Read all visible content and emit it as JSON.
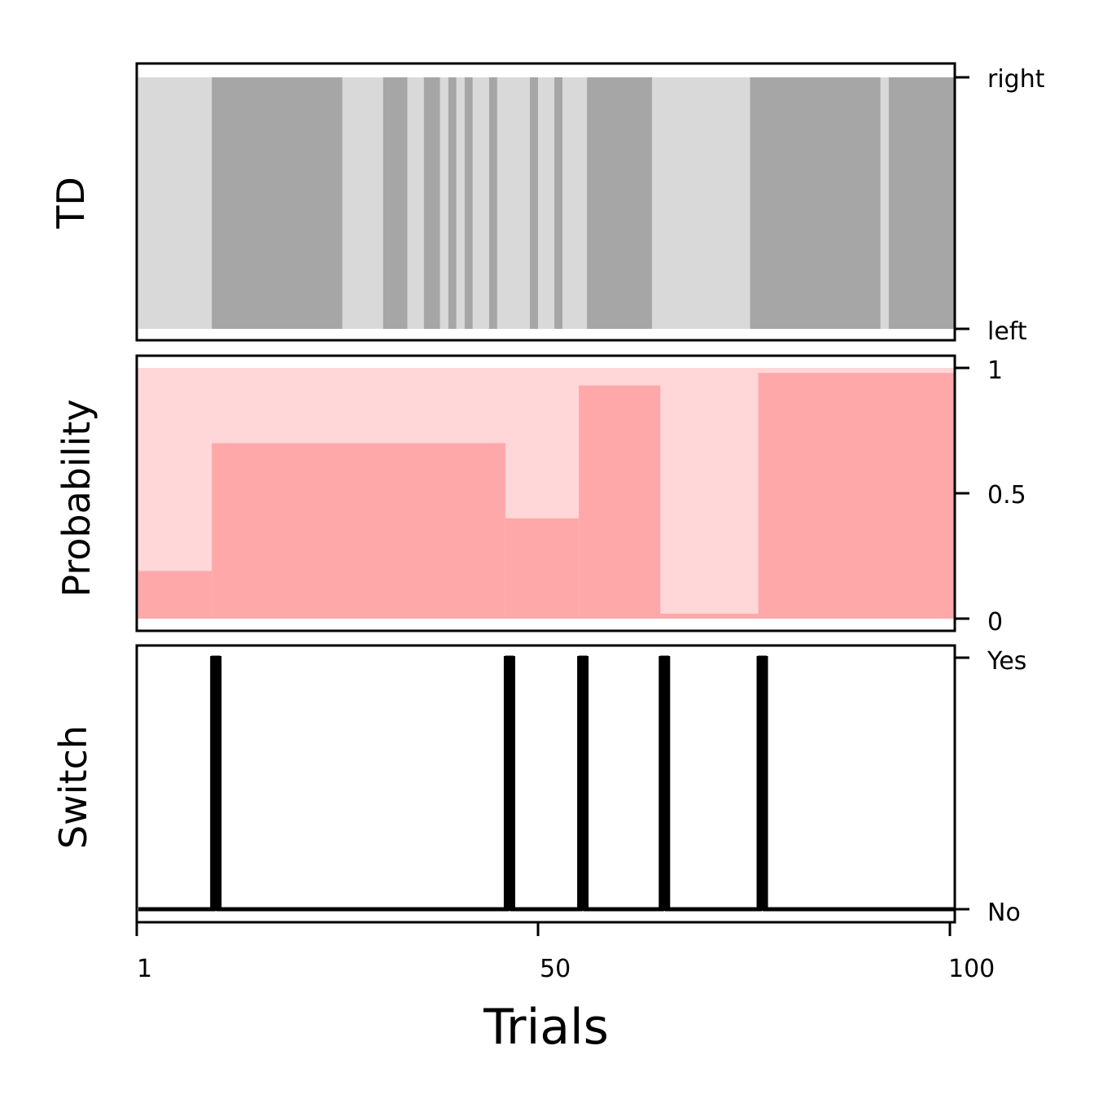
{
  "colors": {
    "td_left": "#d9d9d9",
    "td_right": "#a6a6a6",
    "prob_bg": "#ffd7d9",
    "prob_fill": "#ffa8a9",
    "switch_line": "#000000",
    "frame": "#000000"
  },
  "chart_data": [
    {
      "type": "area",
      "panel": "td",
      "ylabel": "TD",
      "ytick_labels": [
        "right",
        "left"
      ],
      "xlim": [
        1,
        100
      ],
      "description_segments_note": "1 = right (dark gray), 0 = left (light gray)",
      "segments": [
        {
          "start": 1,
          "end": 9,
          "side": "left"
        },
        {
          "start": 10,
          "end": 25,
          "side": "right"
        },
        {
          "start": 26,
          "end": 30,
          "side": "left"
        },
        {
          "start": 31,
          "end": 33,
          "side": "right"
        },
        {
          "start": 34,
          "end": 35,
          "side": "left"
        },
        {
          "start": 36,
          "end": 37,
          "side": "right"
        },
        {
          "start": 38,
          "end": 38,
          "side": "left"
        },
        {
          "start": 39,
          "end": 39,
          "side": "right"
        },
        {
          "start": 40,
          "end": 40,
          "side": "left"
        },
        {
          "start": 41,
          "end": 41,
          "side": "right"
        },
        {
          "start": 42,
          "end": 43,
          "side": "left"
        },
        {
          "start": 44,
          "end": 44,
          "side": "right"
        },
        {
          "start": 45,
          "end": 48,
          "side": "left"
        },
        {
          "start": 49,
          "end": 49,
          "side": "right"
        },
        {
          "start": 50,
          "end": 51,
          "side": "left"
        },
        {
          "start": 52,
          "end": 52,
          "side": "right"
        },
        {
          "start": 53,
          "end": 55,
          "side": "left"
        },
        {
          "start": 56,
          "end": 63,
          "side": "right"
        },
        {
          "start": 64,
          "end": 75,
          "side": "left"
        },
        {
          "start": 76,
          "end": 91,
          "side": "right"
        },
        {
          "start": 92,
          "end": 92,
          "side": "left"
        },
        {
          "start": 93,
          "end": 100,
          "side": "right"
        }
      ]
    },
    {
      "type": "area",
      "panel": "probability",
      "ylabel": "Probability",
      "ytick_labels": [
        "1",
        "0.5",
        "0"
      ],
      "yticks": [
        1,
        0.5,
        0
      ],
      "ylim": [
        -0.05,
        1.05
      ],
      "xlim": [
        1,
        100
      ],
      "steps": [
        {
          "start": 1,
          "end": 9,
          "value": 0.19
        },
        {
          "start": 10,
          "end": 45,
          "value": 0.7
        },
        {
          "start": 46,
          "end": 54,
          "value": 0.4
        },
        {
          "start": 55,
          "end": 64,
          "value": 0.93
        },
        {
          "start": 65,
          "end": 76,
          "value": 0.02
        },
        {
          "start": 77,
          "end": 100,
          "value": 0.98
        }
      ]
    },
    {
      "type": "line",
      "panel": "switch",
      "ylabel": "Switch",
      "ytick_labels": [
        "Yes",
        "No"
      ],
      "xlim": [
        1,
        100
      ],
      "switch_trials": [
        10,
        46,
        55,
        65,
        77
      ],
      "xlabel": "Trials",
      "xtick_labels": [
        "1",
        "50",
        "100"
      ],
      "xticks": [
        1,
        50,
        100
      ]
    }
  ]
}
